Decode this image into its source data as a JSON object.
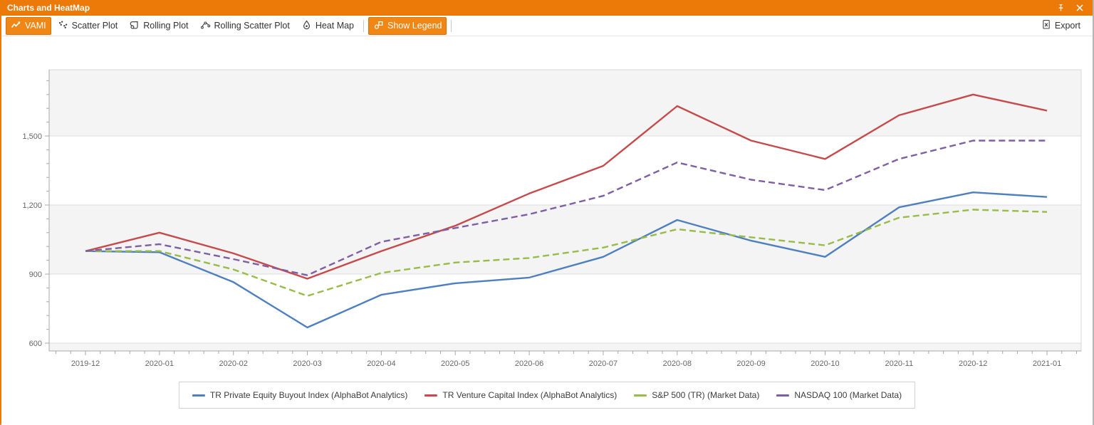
{
  "window": {
    "title": "Charts and HeatMap"
  },
  "toolbar": {
    "buttons": [
      {
        "label": "VAMI",
        "active": true
      },
      {
        "label": "Scatter Plot",
        "active": false
      },
      {
        "label": "Rolling Plot",
        "active": false
      },
      {
        "label": "Rolling Scatter Plot",
        "active": false
      },
      {
        "label": "Heat Map",
        "active": false
      },
      {
        "label": "Show Legend",
        "active": true
      }
    ],
    "export_label": "Export"
  },
  "colors": {
    "accent_orange": "#ec7a08",
    "active_button_orange": "#f08613",
    "band_gray": "#f4f4f4",
    "gridline": "#dcdcdc",
    "axis_line": "#a8a8a8",
    "axis_text": "#666666"
  },
  "chart_data": {
    "type": "line",
    "x": [
      "2019-12",
      "2020-01",
      "2020-02",
      "2020-03",
      "2020-04",
      "2020-05",
      "2020-06",
      "2020-07",
      "2020-08",
      "2020-09",
      "2020-10",
      "2020-11",
      "2020-12",
      "2021-01"
    ],
    "series": [
      {
        "name": "TR Private Equity Buyout Index (AlphaBot Analytics)",
        "color": "#4e7fbf",
        "dash": "solid",
        "values": [
          1000,
          995,
          865,
          668,
          810,
          860,
          885,
          975,
          1135,
          1045,
          975,
          1190,
          1255,
          1235
        ]
      },
      {
        "name": "TR Venture Capital Index (AlphaBot Analytics)",
        "color": "#c64a4b",
        "dash": "solid",
        "values": [
          1000,
          1080,
          990,
          880,
          1000,
          1110,
          1250,
          1370,
          1630,
          1480,
          1400,
          1590,
          1680,
          1610
        ]
      },
      {
        "name": "S&P 500 (TR) (Market Data)",
        "color": "#98bc49",
        "dash": "dashed",
        "values": [
          1000,
          1000,
          920,
          805,
          905,
          950,
          970,
          1015,
          1095,
          1060,
          1025,
          1145,
          1180,
          1170
        ]
      },
      {
        "name": "NASDAQ 100 (Market Data)",
        "color": "#7e5fa5",
        "dash": "dashed",
        "values": [
          1000,
          1030,
          965,
          895,
          1040,
          1100,
          1160,
          1240,
          1385,
          1310,
          1265,
          1400,
          1480,
          1480
        ]
      }
    ],
    "yticks": [
      600,
      900,
      1200,
      1500
    ],
    "y_minor_step": 60,
    "ylim": [
      566,
      1788
    ],
    "interlaced_bands": true,
    "legend_position": "bottom"
  }
}
